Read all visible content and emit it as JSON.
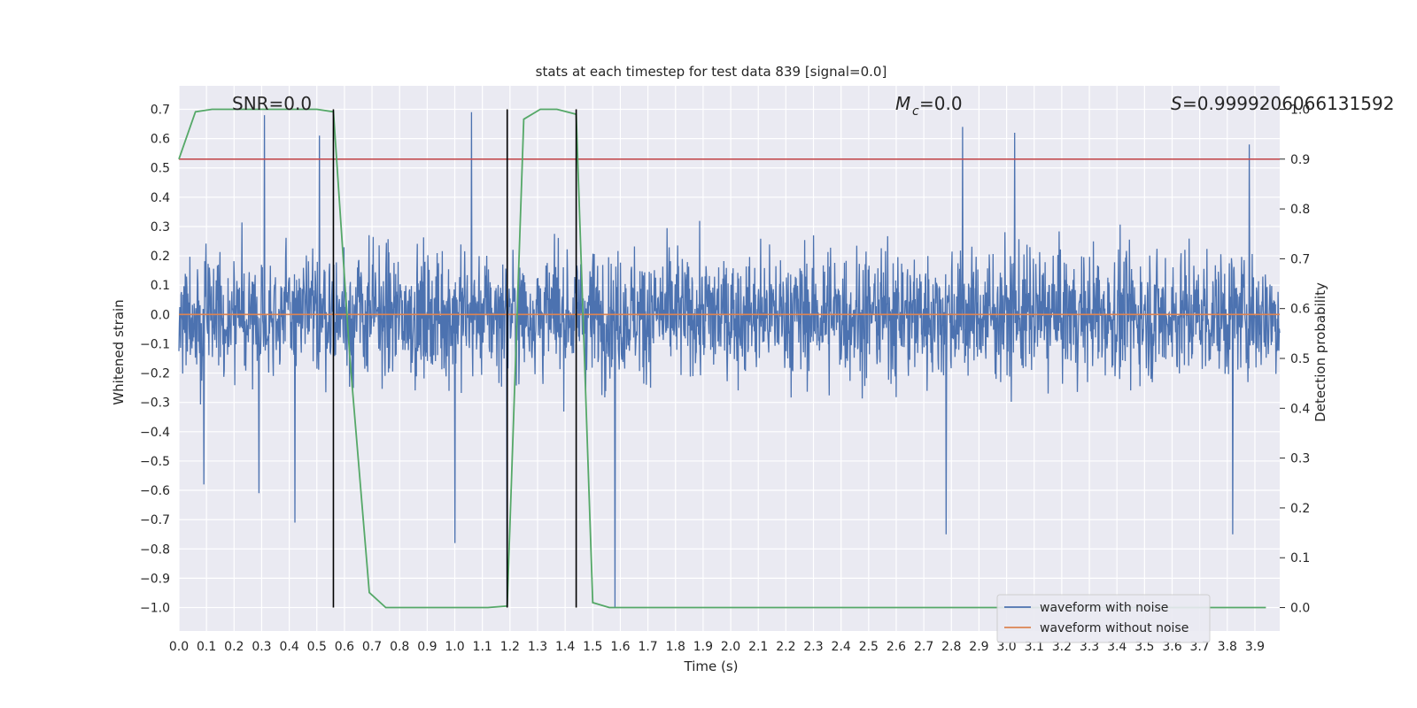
{
  "chart_data": {
    "type": "line",
    "title": "stats at each timestep for test data 839 [signal=0.0]",
    "xlabel": "Time (s)",
    "ylabel_left": "Whitened strain",
    "ylabel_right": "Detection probability",
    "xlim": [
      0.0,
      3.99
    ],
    "ylim_left": [
      -1.08,
      0.78
    ],
    "ylim_right": [
      -0.047,
      1.047
    ],
    "x_ticks": [
      "0.0",
      "0.1",
      "0.2",
      "0.3",
      "0.4",
      "0.5",
      "0.6",
      "0.7",
      "0.8",
      "0.9",
      "1.0",
      "1.1",
      "1.2",
      "1.3",
      "1.4",
      "1.5",
      "1.6",
      "1.7",
      "1.8",
      "1.9",
      "2.0",
      "2.1",
      "2.2",
      "2.3",
      "2.4",
      "2.5",
      "2.6",
      "2.7",
      "2.8",
      "2.9",
      "3.0",
      "3.1",
      "3.2",
      "3.3",
      "3.4",
      "3.5",
      "3.6",
      "3.7",
      "3.8",
      "3.9"
    ],
    "y_ticks_left": [
      "0.7",
      "0.6",
      "0.5",
      "0.4",
      "0.3",
      "0.2",
      "0.1",
      "0.0",
      "−0.1",
      "−0.2",
      "−0.3",
      "−0.4",
      "−0.5",
      "−0.6",
      "−0.7",
      "−0.8",
      "−0.9",
      "−1.0"
    ],
    "y_ticks_right": [
      "1.0",
      "0.9",
      "0.8",
      "0.7",
      "0.6",
      "0.5",
      "0.4",
      "0.3",
      "0.2",
      "0.1",
      "0.0"
    ],
    "grid": true,
    "legend_placement": "lower-right",
    "annotations": {
      "snr": "SNR=0.0",
      "mc_symbol": "M",
      "mc_sub": "c",
      "mc_value": "=0.0",
      "s_symbol": "S",
      "s_value": "=0.9999206066131592"
    },
    "series": [
      {
        "name": "waveform with noise",
        "color": "#4c72b0",
        "description_values": "dense noise, approx range -1.0 to 0.7",
        "spikes": [
          {
            "x": 0.31,
            "y": 0.68
          },
          {
            "x": 0.42,
            "y": -0.71
          },
          {
            "x": 0.51,
            "y": 0.61
          },
          {
            "x": 0.29,
            "y": -0.61
          },
          {
            "x": 0.09,
            "y": -0.58
          },
          {
            "x": 1.0,
            "y": -0.78
          },
          {
            "x": 1.06,
            "y": 0.69
          },
          {
            "x": 1.58,
            "y": -1.0
          },
          {
            "x": 2.84,
            "y": 0.64
          },
          {
            "x": 2.78,
            "y": -0.75
          },
          {
            "x": 3.03,
            "y": 0.62
          },
          {
            "x": 3.82,
            "y": -0.75
          },
          {
            "x": 3.88,
            "y": 0.58
          },
          {
            "x": 1.19,
            "y": -1.0
          }
        ]
      },
      {
        "name": "waveform without noise",
        "color": "#dd8452",
        "y": 0.0
      },
      {
        "name": "detection probability",
        "axis": "right",
        "color": "#55a868",
        "x": [
          0.0,
          0.06,
          0.12,
          0.19,
          0.25,
          0.31,
          0.37,
          0.44,
          0.5,
          0.56,
          0.62,
          0.69,
          0.75,
          0.81,
          0.87,
          0.94,
          1.0,
          1.06,
          1.12,
          1.19,
          1.25,
          1.31,
          1.37,
          1.44,
          1.5,
          1.56,
          1.62,
          1.69,
          2.0,
          2.5,
          3.0,
          3.5,
          3.94
        ],
        "y": [
          0.9,
          0.995,
          1.0,
          1.0,
          1.0,
          1.0,
          1.0,
          1.0,
          1.0,
          0.995,
          0.5,
          0.03,
          0.0,
          0.0,
          0.0,
          0.0,
          0.0,
          0.0,
          0.0,
          0.003,
          0.98,
          1.0,
          1.0,
          0.99,
          0.01,
          0.0,
          0.0,
          0.0,
          0.0,
          0.0,
          0.0,
          0.0,
          0.0
        ]
      }
    ],
    "threshold": {
      "axis": "right",
      "y": 0.9,
      "color": "#c44e52"
    },
    "vertical_lines_x": [
      0.56,
      1.19,
      1.44
    ]
  }
}
